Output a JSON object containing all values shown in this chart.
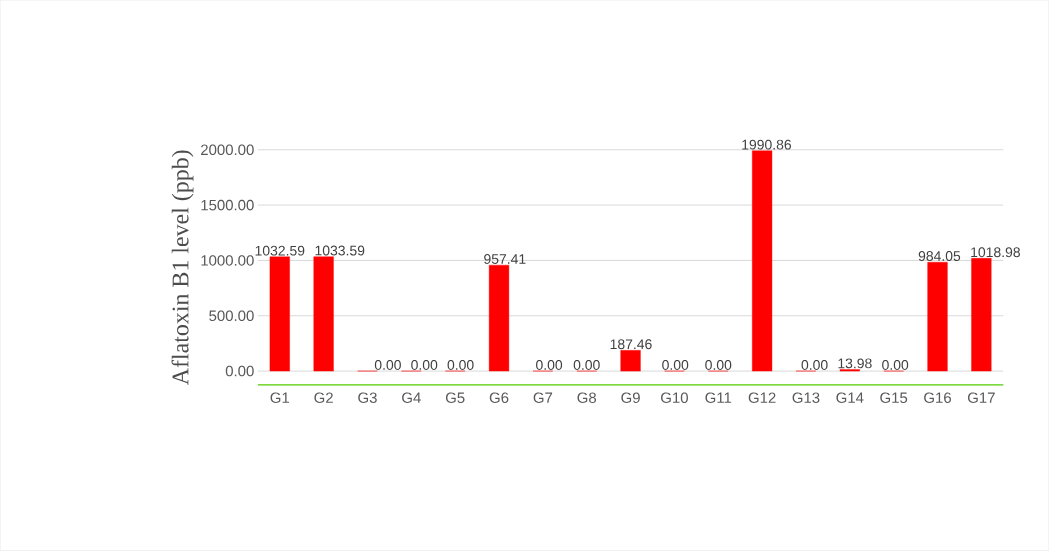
{
  "chart_data": {
    "type": "bar",
    "ylabel": "Aflatoxin B1 level (ppb)",
    "categories": [
      "G1",
      "G2",
      "G3",
      "G4",
      "G5",
      "G6",
      "G7",
      "G8",
      "G9",
      "G10",
      "G11",
      "G12",
      "G13",
      "G14",
      "G15",
      "G16",
      "G17"
    ],
    "values": [
      1032.59,
      1033.59,
      0,
      0,
      0,
      957.41,
      0,
      0,
      187.46,
      0,
      0,
      1990.86,
      0,
      13.98,
      0,
      984.05,
      1018.98
    ],
    "value_labels": [
      "1032.59",
      "1033.59",
      "0.00",
      "0.00",
      "0.00",
      "957.41",
      "0.00",
      "0.00",
      "187.46",
      "0.00",
      "0.00",
      "1990.86",
      "0.00",
      "13.98",
      "0.00",
      "984.05",
      "1018.98"
    ],
    "color": "#ff0000",
    "ylim": [
      -125,
      2000
    ],
    "yticks": [
      {
        "value": 0,
        "label": "0.00"
      },
      {
        "value": 500,
        "label": "500.00"
      },
      {
        "value": 1000,
        "label": "1000.00"
      },
      {
        "value": 1500,
        "label": "1500.00"
      },
      {
        "value": 2000,
        "label": "2000.00"
      }
    ],
    "grid": "y"
  }
}
